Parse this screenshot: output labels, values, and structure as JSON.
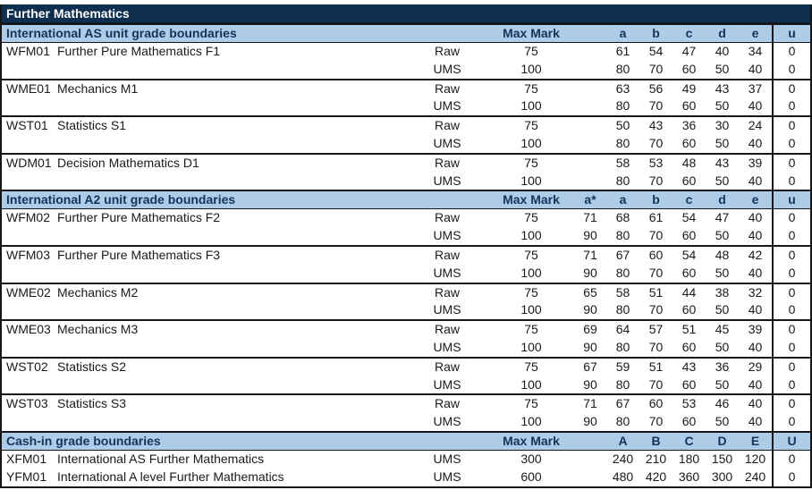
{
  "title": "Further Mathematics",
  "colors": {
    "title_band_bg": "#0E2F4F",
    "title_band_text": "#FFFFFF",
    "section_band_bg": "#AECBE8",
    "section_band_text": "#10365C",
    "rule_color": "#161616",
    "body_text": "#1A1A1A"
  },
  "sections": [
    {
      "header": "International AS unit grade boundaries",
      "max_mark_label": "Max Mark",
      "grade_columns": [
        "a",
        "b",
        "c",
        "d",
        "e",
        "u"
      ],
      "units": [
        {
          "code": "WFM01",
          "name": "Further Pure Mathematics F1",
          "rows": [
            {
              "type": "Raw",
              "max": 75,
              "values": [
                61,
                54,
                47,
                40,
                34,
                0
              ]
            },
            {
              "type": "UMS",
              "max": 100,
              "values": [
                80,
                70,
                60,
                50,
                40,
                0
              ]
            }
          ]
        },
        {
          "code": "WME01",
          "name": "Mechanics M1",
          "rows": [
            {
              "type": "Raw",
              "max": 75,
              "values": [
                63,
                56,
                49,
                43,
                37,
                0
              ]
            },
            {
              "type": "UMS",
              "max": 100,
              "values": [
                80,
                70,
                60,
                50,
                40,
                0
              ]
            }
          ]
        },
        {
          "code": "WST01",
          "name": "Statistics S1",
          "rows": [
            {
              "type": "Raw",
              "max": 75,
              "values": [
                50,
                43,
                36,
                30,
                24,
                0
              ]
            },
            {
              "type": "UMS",
              "max": 100,
              "values": [
                80,
                70,
                60,
                50,
                40,
                0
              ]
            }
          ]
        },
        {
          "code": "WDM01",
          "name": "Decision Mathematics D1",
          "rows": [
            {
              "type": "Raw",
              "max": 75,
              "values": [
                58,
                53,
                48,
                43,
                39,
                0
              ]
            },
            {
              "type": "UMS",
              "max": 100,
              "values": [
                80,
                70,
                60,
                50,
                40,
                0
              ]
            }
          ]
        }
      ]
    },
    {
      "header": "International A2 unit grade boundaries",
      "max_mark_label": "Max Mark",
      "grade_columns": [
        "a*",
        "a",
        "b",
        "c",
        "d",
        "e",
        "u"
      ],
      "units": [
        {
          "code": "WFM02",
          "name": "Further Pure Mathematics F2",
          "rows": [
            {
              "type": "Raw",
              "max": 75,
              "values": [
                71,
                68,
                61,
                54,
                47,
                40,
                0
              ]
            },
            {
              "type": "UMS",
              "max": 100,
              "values": [
                90,
                80,
                70,
                60,
                50,
                40,
                0
              ]
            }
          ]
        },
        {
          "code": "WFM03",
          "name": "Further Pure Mathematics F3",
          "rows": [
            {
              "type": "Raw",
              "max": 75,
              "values": [
                71,
                67,
                60,
                54,
                48,
                42,
                0
              ]
            },
            {
              "type": "UMS",
              "max": 100,
              "values": [
                90,
                80,
                70,
                60,
                50,
                40,
                0
              ]
            }
          ]
        },
        {
          "code": "WME02",
          "name": "Mechanics M2",
          "rows": [
            {
              "type": "Raw",
              "max": 75,
              "values": [
                65,
                58,
                51,
                44,
                38,
                32,
                0
              ]
            },
            {
              "type": "UMS",
              "max": 100,
              "values": [
                90,
                80,
                70,
                60,
                50,
                40,
                0
              ]
            }
          ]
        },
        {
          "code": "WME03",
          "name": "Mechanics M3",
          "rows": [
            {
              "type": "Raw",
              "max": 75,
              "values": [
                69,
                64,
                57,
                51,
                45,
                39,
                0
              ]
            },
            {
              "type": "UMS",
              "max": 100,
              "values": [
                90,
                80,
                70,
                60,
                50,
                40,
                0
              ]
            }
          ]
        },
        {
          "code": "WST02",
          "name": "Statistics S2",
          "rows": [
            {
              "type": "Raw",
              "max": 75,
              "values": [
                67,
                59,
                51,
                43,
                36,
                29,
                0
              ]
            },
            {
              "type": "UMS",
              "max": 100,
              "values": [
                90,
                80,
                70,
                60,
                50,
                40,
                0
              ]
            }
          ]
        },
        {
          "code": "WST03",
          "name": "Statistics S3",
          "rows": [
            {
              "type": "Raw",
              "max": 75,
              "values": [
                71,
                67,
                60,
                53,
                46,
                40,
                0
              ]
            },
            {
              "type": "UMS",
              "max": 100,
              "values": [
                90,
                80,
                70,
                60,
                50,
                40,
                0
              ]
            }
          ]
        }
      ]
    },
    {
      "header": "Cash-in grade boundaries",
      "max_mark_label": "Max Mark",
      "grade_columns": [
        "A",
        "B",
        "C",
        "D",
        "E",
        "U"
      ],
      "units": [
        {
          "code": "XFM01",
          "name": "International AS Further Mathematics",
          "rows": [
            {
              "type": "UMS",
              "max": 300,
              "values": [
                240,
                210,
                180,
                150,
                120,
                0
              ]
            }
          ]
        },
        {
          "code": "YFM01",
          "name": "International A level Further Mathematics",
          "rows": [
            {
              "type": "UMS",
              "max": 600,
              "values": [
                480,
                420,
                360,
                300,
                240,
                0
              ]
            }
          ]
        }
      ]
    }
  ]
}
